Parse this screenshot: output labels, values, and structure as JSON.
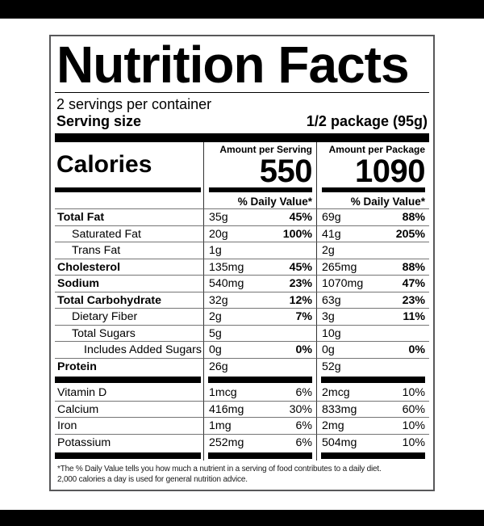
{
  "title": "Nutrition Facts",
  "servings_line": "2 servings per container",
  "serving_size": {
    "label": "Serving size",
    "value": "1/2 package (95g)"
  },
  "calories_section": {
    "label": "Calories",
    "serving": {
      "header": "Amount per Serving",
      "value": "550"
    },
    "package": {
      "header": "Amount per Package",
      "value": "1090"
    },
    "dv_header_serving": "% Daily Value*",
    "dv_header_package": "% Daily Value*"
  },
  "nutrients": [
    {
      "label": "Total Fat",
      "serving_amount": "35g",
      "serving_dv": "45%",
      "package_amount": "69g",
      "package_dv": "88%"
    },
    {
      "label": "Saturated Fat",
      "serving_amount": "20g",
      "serving_dv": "100%",
      "package_amount": "41g",
      "package_dv": "205%"
    },
    {
      "label": "Trans Fat",
      "serving_amount": "1g",
      "serving_dv": "",
      "package_amount": "2g",
      "package_dv": ""
    },
    {
      "label": "Cholesterol",
      "serving_amount": "135mg",
      "serving_dv": "45%",
      "package_amount": "265mg",
      "package_dv": "88%"
    },
    {
      "label": "Sodium",
      "serving_amount": "540mg",
      "serving_dv": "23%",
      "package_amount": "1070mg",
      "package_dv": "47%"
    },
    {
      "label": "Total Carbohydrate",
      "serving_amount": "32g",
      "serving_dv": "12%",
      "package_amount": "63g",
      "package_dv": "23%"
    },
    {
      "label": "Dietary Fiber",
      "serving_amount": "2g",
      "serving_dv": "7%",
      "package_amount": "3g",
      "package_dv": "11%"
    },
    {
      "label": "Total Sugars",
      "serving_amount": "5g",
      "serving_dv": "",
      "package_amount": "10g",
      "package_dv": ""
    },
    {
      "label": "Includes Added Sugars",
      "serving_amount": "0g",
      "serving_dv": "0%",
      "package_amount": "0g",
      "package_dv": "0%"
    },
    {
      "label": "Protein",
      "serving_amount": "26g",
      "serving_dv": "",
      "package_amount": "52g",
      "package_dv": ""
    }
  ],
  "vitamins": [
    {
      "label": "Vitamin D",
      "serving_amount": "1mcg",
      "serving_dv": "6%",
      "package_amount": "2mcg",
      "package_dv": "10%"
    },
    {
      "label": "Calcium",
      "serving_amount": "416mg",
      "serving_dv": "30%",
      "package_amount": "833mg",
      "package_dv": "60%"
    },
    {
      "label": "Iron",
      "serving_amount": "1mg",
      "serving_dv": "6%",
      "package_amount": "2mg",
      "package_dv": "10%"
    },
    {
      "label": "Potassium",
      "serving_amount": "252mg",
      "serving_dv": "6%",
      "package_amount": "504mg",
      "package_dv": "10%"
    }
  ],
  "footnote": {
    "line1": "*The % Daily Value tells you how much a nutrient in a serving of food contributes to a daily diet.",
    "line2": "2,000 calories a day is used for general nutrition advice."
  },
  "colors": {
    "background": "#ffffff",
    "letterbox_bar": "#000000",
    "text": "#000000",
    "thick_bar": "#000000",
    "hairline": "#757575",
    "column_divider": "#333333",
    "box_border": "#58585a"
  }
}
